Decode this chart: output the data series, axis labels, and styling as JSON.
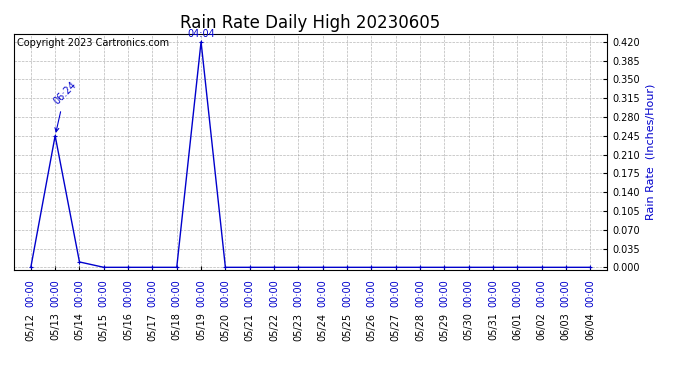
{
  "title": "Rain Rate Daily High 20230605",
  "copyright_text": "Copyright 2023 Cartronics.com",
  "ylabel": "Rain Rate  (Inches/Hour)",
  "line_color": "#0000cc",
  "background_color": "#ffffff",
  "grid_color": "#999999",
  "title_color": "#000000",
  "label_color": "#0000cc",
  "yticks": [
    0.0,
    0.035,
    0.07,
    0.105,
    0.14,
    0.175,
    0.21,
    0.245,
    0.28,
    0.315,
    0.35,
    0.385,
    0.42
  ],
  "ylim": [
    -0.005,
    0.435
  ],
  "dates": [
    "05/12",
    "05/13",
    "05/14",
    "05/15",
    "05/16",
    "05/17",
    "05/18",
    "05/19",
    "05/20",
    "05/21",
    "05/22",
    "05/23",
    "05/24",
    "05/25",
    "05/26",
    "05/27",
    "05/28",
    "05/29",
    "05/30",
    "05/31",
    "06/01",
    "06/02",
    "06/03",
    "06/04"
  ],
  "values": [
    0.0,
    0.245,
    0.01,
    0.0,
    0.0,
    0.0,
    0.0,
    0.42,
    0.0,
    0.0,
    0.0,
    0.0,
    0.0,
    0.0,
    0.0,
    0.0,
    0.0,
    0.0,
    0.0,
    0.0,
    0.0,
    0.0,
    0.0,
    0.0
  ],
  "peak1_idx": 1,
  "peak1_label": "06:24",
  "peak2_idx": 7,
  "peak2_label": "04:04",
  "time_label": "00:00",
  "font_size_title": 12,
  "font_size_ticks": 7,
  "font_size_ylabel": 8,
  "font_size_copyright": 7,
  "font_size_peak": 7
}
